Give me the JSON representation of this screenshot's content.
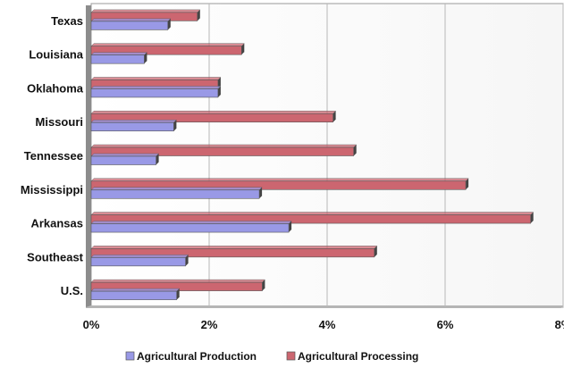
{
  "chart_data": {
    "type": "bar",
    "orientation": "horizontal",
    "title": "",
    "xlabel": "",
    "ylabel": "",
    "categories": [
      "Texas",
      "Louisiana",
      "Oklahoma",
      "Missouri",
      "Tennessee",
      "Mississippi",
      "Arkansas",
      "Southeast",
      "U.S."
    ],
    "series": [
      {
        "name": "Agricultural Production",
        "color": "#9999e6",
        "values": [
          1.3,
          0.9,
          2.15,
          1.4,
          1.1,
          2.85,
          3.35,
          1.6,
          1.45
        ]
      },
      {
        "name": "Agricultural Processing",
        "color": "#cc6670",
        "values": [
          1.8,
          2.55,
          2.15,
          4.1,
          4.45,
          6.35,
          7.45,
          4.8,
          2.9
        ]
      }
    ],
    "xlim": [
      0,
      8
    ],
    "xticks": [
      "0%",
      "2%",
      "4%",
      "6%",
      "8%"
    ],
    "xtick_values": [
      0,
      2,
      4,
      6,
      8
    ],
    "grid": "vertical",
    "legend_position": "bottom-center"
  }
}
